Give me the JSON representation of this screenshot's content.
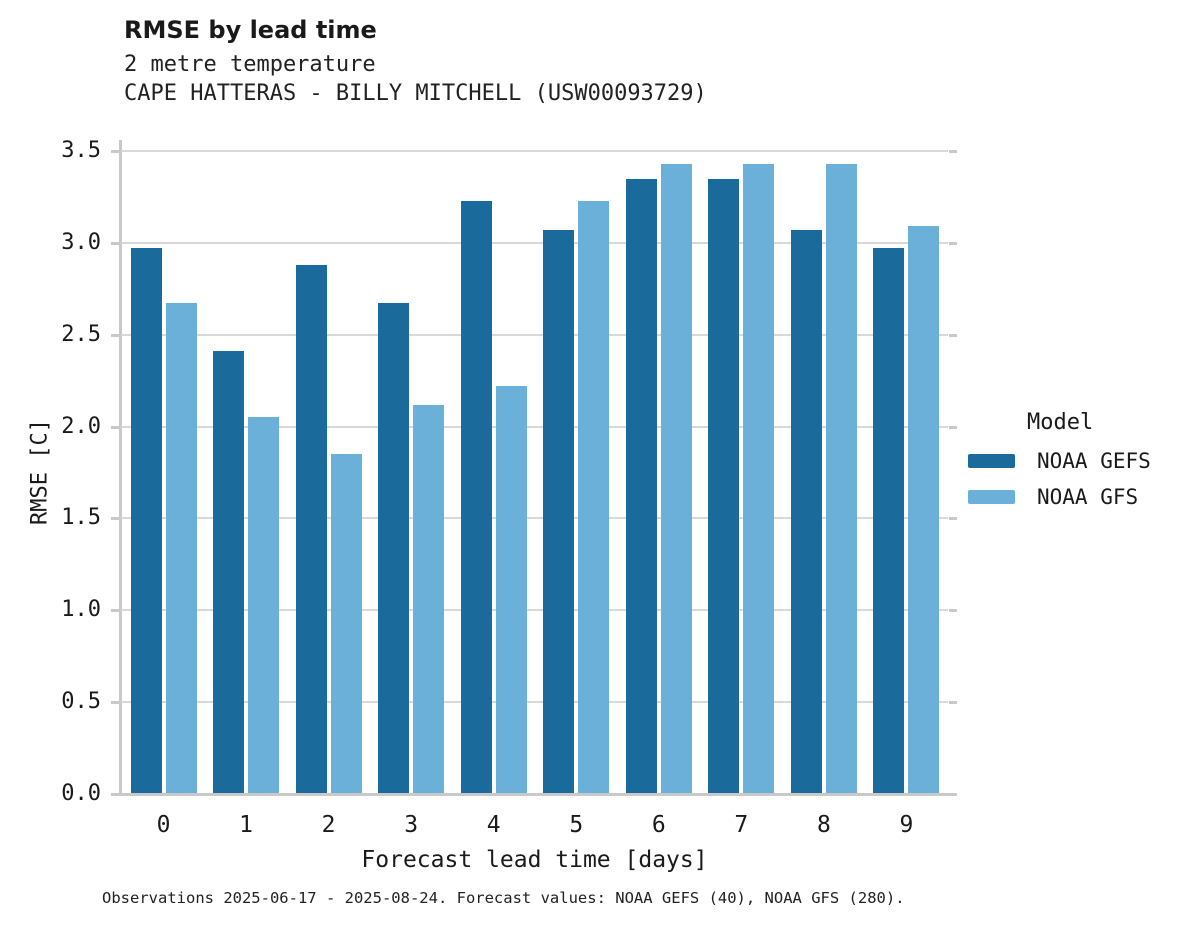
{
  "header": {
    "title": "RMSE by lead time",
    "subtitle1": "2 metre temperature",
    "subtitle2": "CAPE HATTERAS - BILLY MITCHELL (USW00093729)"
  },
  "chart_data": {
    "type": "bar",
    "title": "RMSE by lead time",
    "subtitle": [
      "2 metre temperature",
      "CAPE HATTERAS - BILLY MITCHELL (USW00093729)"
    ],
    "categories": [
      "0",
      "1",
      "2",
      "3",
      "4",
      "5",
      "6",
      "7",
      "8",
      "9"
    ],
    "series": [
      {
        "name": "NOAA GEFS",
        "color": "#1a6b9b",
        "values": [
          2.97,
          2.41,
          2.88,
          2.67,
          3.23,
          3.07,
          3.35,
          3.35,
          3.07,
          2.97
        ]
      },
      {
        "name": "NOAA GFS",
        "color": "#6bb0d8",
        "values": [
          2.67,
          2.05,
          1.85,
          2.12,
          2.22,
          3.23,
          3.43,
          3.43,
          3.43,
          3.09
        ]
      }
    ],
    "xlabel": "Forecast lead time [days]",
    "ylabel": "RMSE [C]",
    "ylim": [
      0.0,
      3.5
    ],
    "ytick_step": 0.5,
    "ytick_format_decimals": 1,
    "grid": true,
    "legend_title": "Model",
    "legend_position": "right of plot, middle"
  },
  "legend": {
    "title": "Model",
    "items": [
      {
        "label": "NOAA GEFS",
        "color": "#1a6b9b"
      },
      {
        "label": "NOAA GFS",
        "color": "#6bb0d8"
      }
    ]
  },
  "caption": "Observations 2025-06-17 - 2025-08-24. Forecast values: NOAA GEFS (40), NOAA GFS (280)."
}
